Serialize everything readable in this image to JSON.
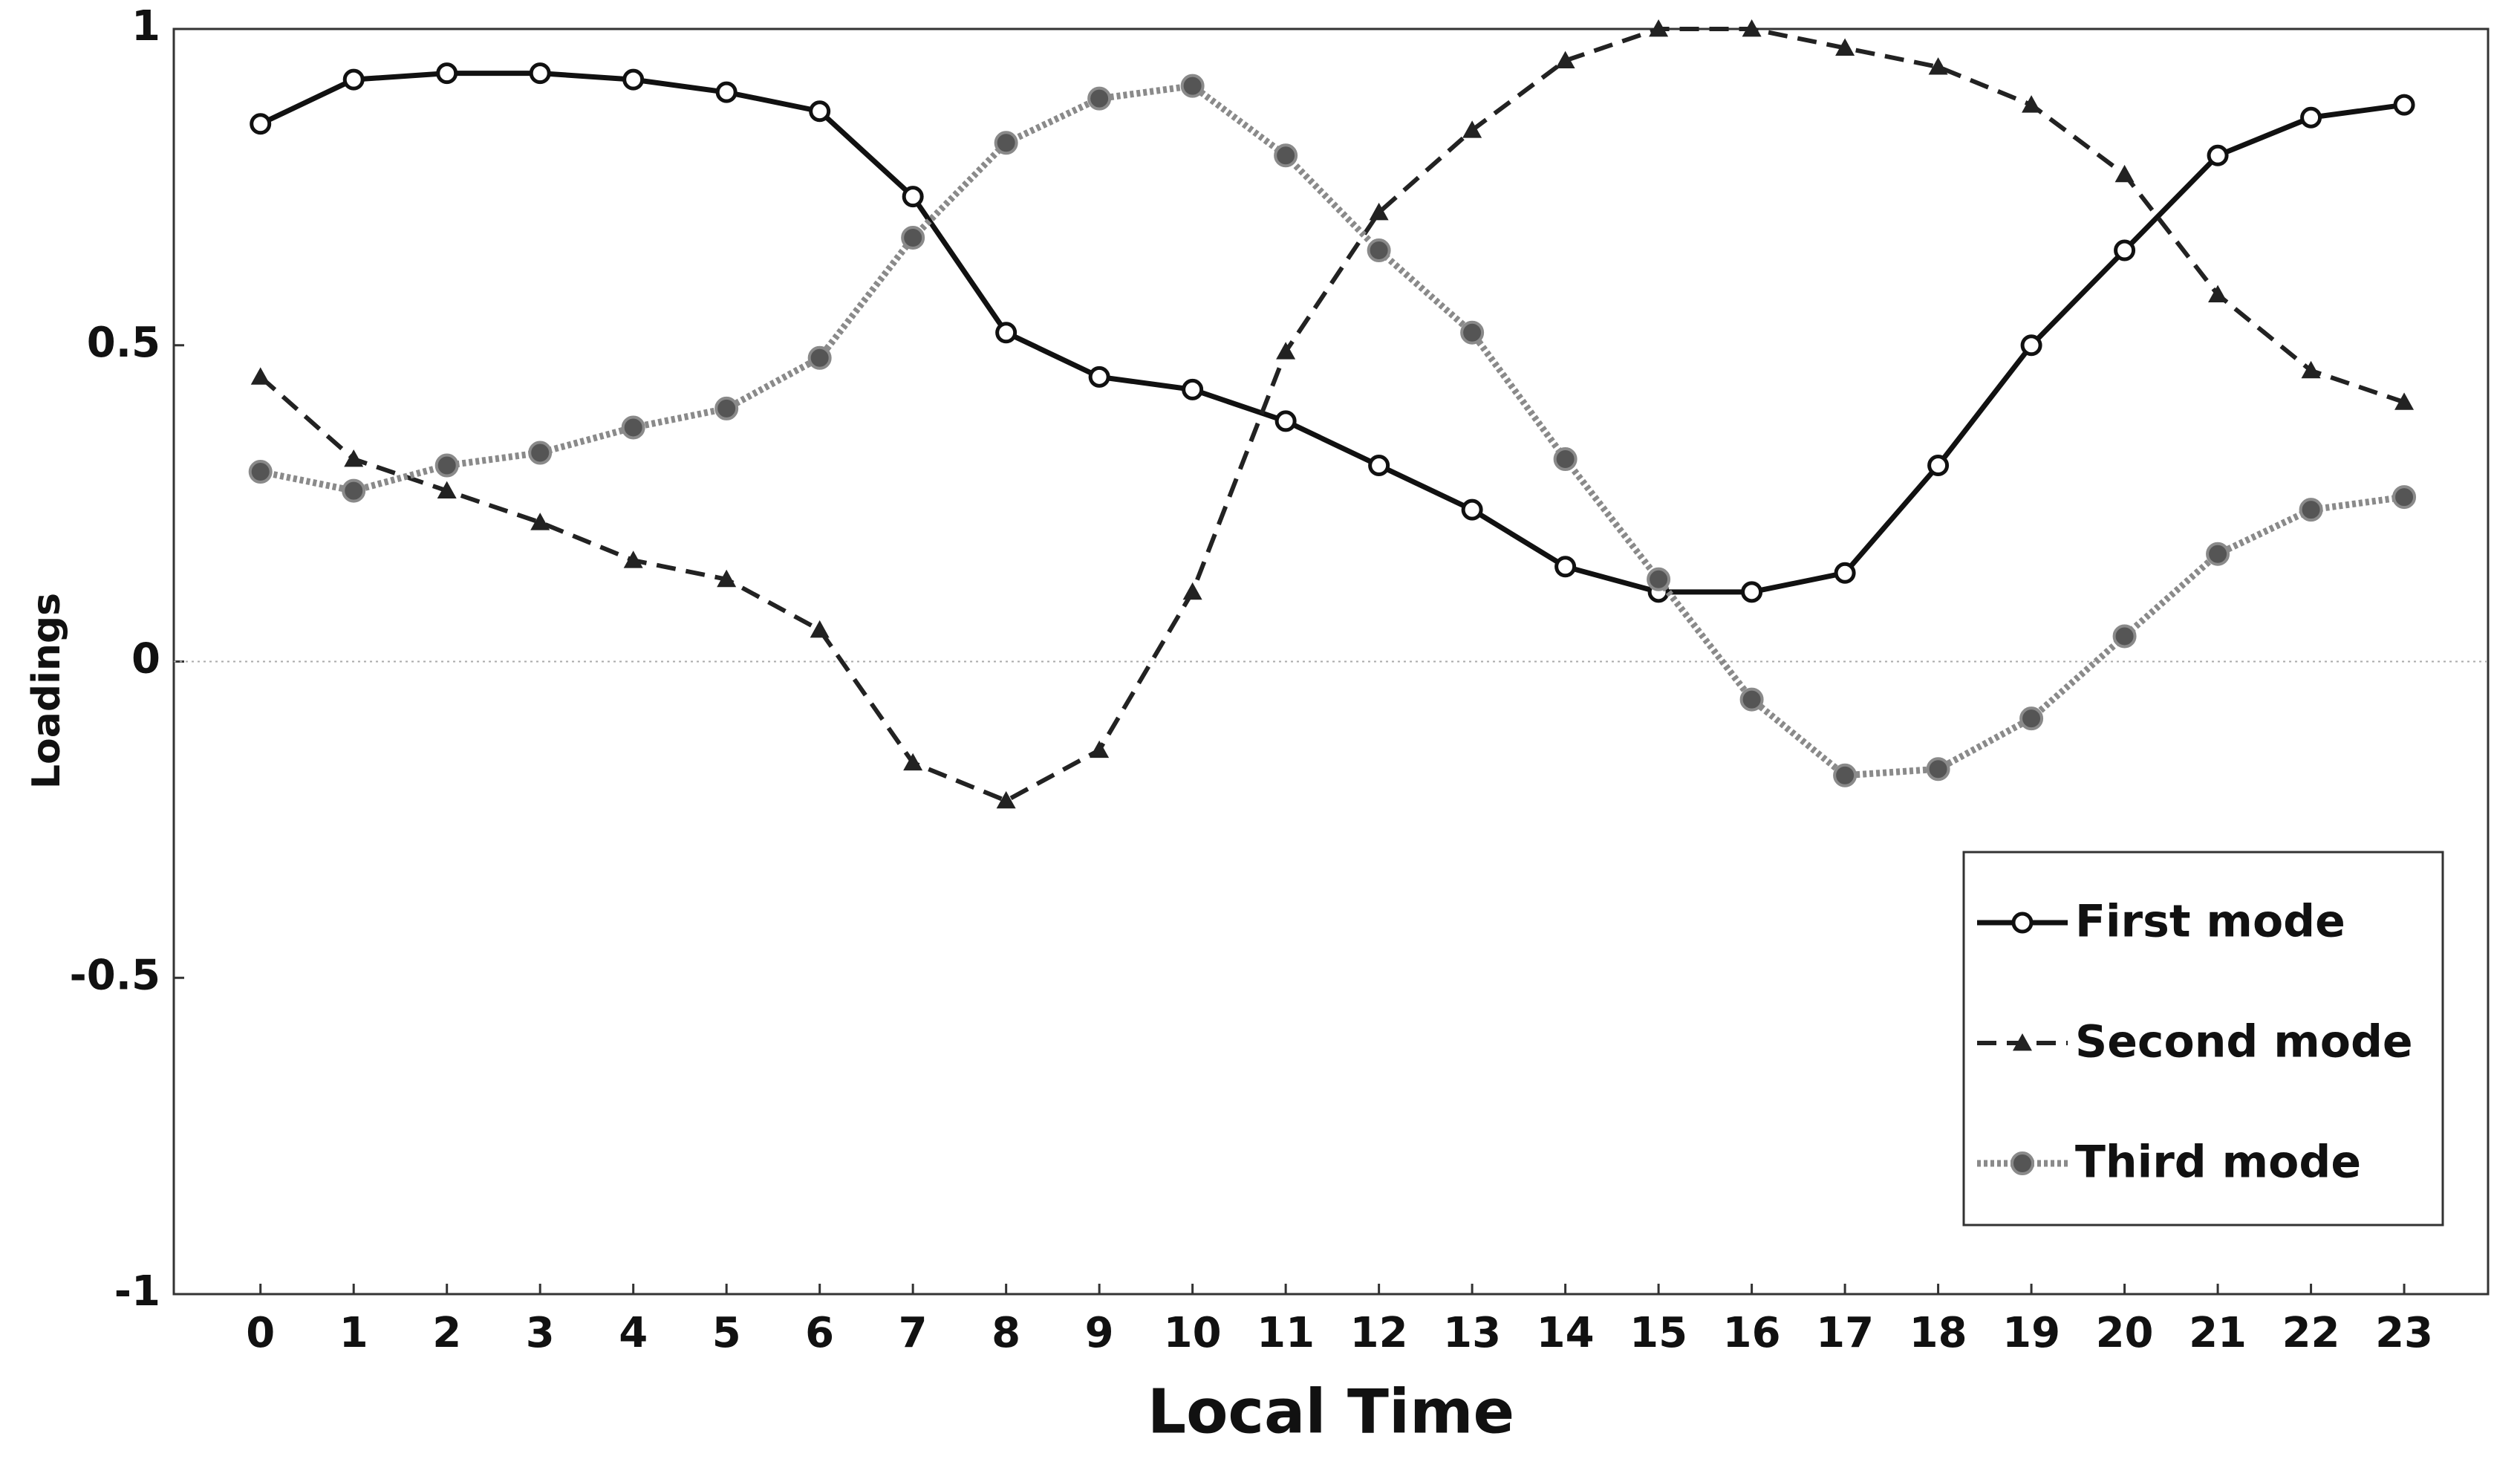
{
  "chart_data": {
    "type": "line",
    "x_label": "Local Time",
    "y_label": "Loadings",
    "x": [
      0,
      1,
      2,
      3,
      4,
      5,
      6,
      7,
      8,
      9,
      10,
      11,
      12,
      13,
      14,
      15,
      16,
      17,
      18,
      19,
      20,
      21,
      22,
      23
    ],
    "xlim": [
      -0.93,
      23.9
    ],
    "xticks": [
      0,
      1,
      2,
      3,
      4,
      5,
      6,
      7,
      8,
      9,
      10,
      11,
      12,
      13,
      14,
      15,
      16,
      17,
      18,
      19,
      20,
      21,
      22,
      23
    ],
    "ylim": [
      -1,
      1
    ],
    "yticks": [
      -1,
      -0.5,
      0,
      0.5,
      1
    ],
    "zero_line": true,
    "legend": "lower right",
    "series": [
      {
        "name": "First mode",
        "color": "#111111",
        "line_style": "solid",
        "marker": "circle-open",
        "values": [
          0.85,
          0.92,
          0.93,
          0.93,
          0.92,
          0.9,
          0.87,
          0.735,
          0.52,
          0.45,
          0.43,
          0.38,
          0.31,
          0.24,
          0.15,
          0.11,
          0.11,
          0.14,
          0.31,
          0.5,
          0.65,
          0.8,
          0.86,
          0.88
        ]
      },
      {
        "name": "Second mode",
        "color": "#222222",
        "line_style": "dashed",
        "marker": "triangle",
        "values": [
          0.45,
          0.32,
          0.27,
          0.22,
          0.16,
          0.13,
          0.05,
          -0.16,
          -0.22,
          -0.14,
          0.11,
          0.49,
          0.71,
          0.84,
          0.95,
          1.0,
          1.0,
          0.97,
          0.94,
          0.88,
          0.77,
          0.58,
          0.46,
          0.41
        ]
      },
      {
        "name": "Third mode",
        "color": "#8a8a8a",
        "line_style": "dotted",
        "marker": "circle",
        "values": [
          0.3,
          0.27,
          0.31,
          0.33,
          0.37,
          0.4,
          0.48,
          0.67,
          0.82,
          0.89,
          0.91,
          0.8,
          0.65,
          0.52,
          0.32,
          0.13,
          -0.06,
          -0.18,
          -0.17,
          -0.09,
          0.04,
          0.17,
          0.24,
          0.26
        ]
      }
    ]
  }
}
